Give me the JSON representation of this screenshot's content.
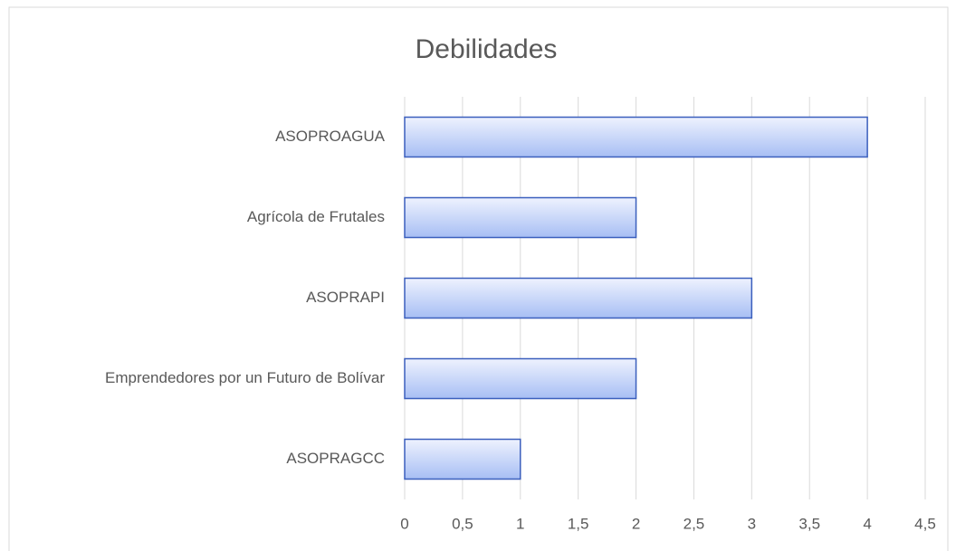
{
  "chart_data": {
    "type": "barh",
    "title": "Debilidades",
    "categories": [
      "ASOPROAGUA",
      "Agrícola de Frutales",
      "ASOPRAPI",
      "Emprendedores por un Futuro de Bolívar",
      "ASOPRAGCC"
    ],
    "values": [
      4,
      2,
      3,
      2,
      1
    ],
    "color": "#3b5fbd",
    "xlim": [
      0,
      4.5
    ],
    "xticks": [
      0,
      {
        "value": 0.5,
        "label": "0,5"
      },
      1,
      {
        "value": 1.5,
        "label": "1,5"
      },
      2,
      {
        "value": 2.5,
        "label": "2,5"
      },
      3,
      {
        "value": 3.5,
        "label": "3,5"
      },
      4,
      {
        "value": 4.5,
        "label": "4,5"
      }
    ],
    "grid": true
  }
}
